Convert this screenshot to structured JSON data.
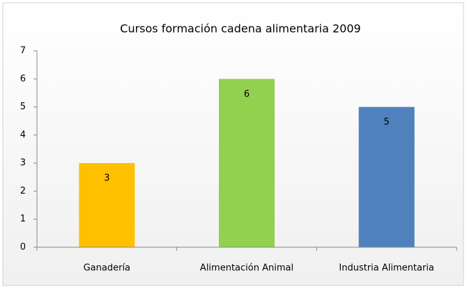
{
  "chart_data": {
    "type": "bar",
    "title": "Cursos formación cadena alimentaria 2009",
    "categories": [
      "Ganadería",
      "Alimentación Animal",
      "Industria Alimentaria"
    ],
    "values": [
      3,
      6,
      5
    ],
    "colors": [
      "#ffc000",
      "#92d050",
      "#4f81bd"
    ],
    "ylim": [
      0,
      7
    ],
    "yticks": [
      0,
      1,
      2,
      3,
      4,
      5,
      6,
      7
    ],
    "grid": false
  }
}
